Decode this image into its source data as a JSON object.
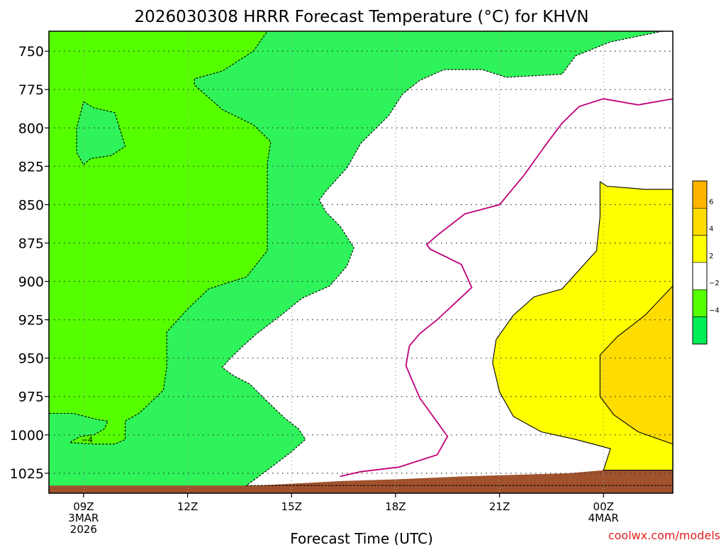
{
  "chart_data": {
    "type": "heatmap",
    "title": "2026030308 HRRR Forecast Temperature (°C) for KHVN",
    "xlabel": "Forecast Time (UTC)",
    "credit": "coolwx.com/models",
    "y_ticks": [
      "750",
      "775",
      "800",
      "825",
      "850",
      "875",
      "900",
      "925",
      "950",
      "975",
      "1000",
      "1025"
    ],
    "x_ticks": [
      {
        "lines": [
          "09Z",
          "3MAR",
          "2026"
        ]
      },
      {
        "lines": [
          "12Z"
        ]
      },
      {
        "lines": [
          "15Z"
        ]
      },
      {
        "lines": [
          "18Z"
        ]
      },
      {
        "lines": [
          "21Z"
        ]
      },
      {
        "lines": [
          "00Z",
          "4MAR"
        ]
      }
    ],
    "contour_labels": [
      {
        "text": "−4",
        "hour": 9.1,
        "pressure": 1005
      }
    ],
    "legend": {
      "labels": [
        "6",
        "4",
        "2",
        "−2",
        "−4"
      ],
      "bins": [
        {
          "from": 6,
          "to": 8,
          "color": "#ffb400"
        },
        {
          "from": 4,
          "to": 6,
          "color": "#ffdc00"
        },
        {
          "from": 2,
          "to": 4,
          "color": "#ffff00"
        },
        {
          "from": -2,
          "to": 2,
          "color": "#ffffff"
        },
        {
          "from": -4,
          "to": -2,
          "color": "#55ff00"
        },
        {
          "from": -6,
          "to": -4,
          "color": "#00ee55"
        }
      ]
    },
    "colors": {
      "below_minus4": "#2ef35a",
      "minus4_to_minus2": "#55ff00",
      "minus2_to_2": "#ffffff",
      "2_to_4": "#ffff00",
      "4_to_6": "#ffdc00",
      "ground": "#a0522d",
      "zero_isotherm": "#c0007a"
    },
    "axes": {
      "x_hours": [
        8,
        26
      ],
      "y_pressure_hPa": [
        1038,
        737
      ],
      "x_grid_hours": [
        9,
        12,
        15,
        18,
        21,
        24
      ]
    },
    "contours": [
      {
        "name": "-4",
        "color": "#55ff00",
        "dashed": true,
        "closed": true,
        "points": [
          [
            8,
            737
          ],
          [
            14.3,
            737
          ],
          [
            14.3,
            737
          ],
          [
            13.9,
            750
          ],
          [
            13.0,
            763
          ],
          [
            12.2,
            768
          ],
          [
            12.2,
            772
          ],
          [
            13.0,
            788
          ],
          [
            13.9,
            798
          ],
          [
            14.4,
            809
          ],
          [
            14.3,
            823
          ],
          [
            14.3,
            850
          ],
          [
            14.3,
            880
          ],
          [
            13.7,
            897
          ],
          [
            12.6,
            905
          ],
          [
            12.0,
            918
          ],
          [
            11.4,
            933
          ],
          [
            11.4,
            956
          ],
          [
            11.3,
            971
          ],
          [
            10.6,
            986
          ],
          [
            10.2,
            991
          ],
          [
            10.2,
            1003
          ],
          [
            9.9,
            1006
          ],
          [
            9.3,
            1006
          ],
          [
            8.6,
            1005
          ],
          [
            8.9,
            1001
          ],
          [
            9.3,
            1000
          ],
          [
            9.6,
            996
          ],
          [
            9.7,
            991
          ],
          [
            9.4,
            990
          ],
          [
            8.7,
            986
          ],
          [
            8,
            986
          ]
        ]
      },
      {
        "name": "-4 island",
        "color": "#55ff00",
        "dashed": true,
        "closed": true,
        "points": [
          [
            9.0,
            783
          ],
          [
            9.3,
            787
          ],
          [
            9.9,
            790
          ],
          [
            10.2,
            812
          ],
          [
            9.8,
            818
          ],
          [
            9.2,
            820
          ],
          [
            9.0,
            824
          ],
          [
            8.8,
            816
          ],
          [
            8.8,
            800
          ]
        ]
      },
      {
        "name": "-2",
        "color": "#ffffff",
        "dashed": true,
        "closed": true,
        "points": [
          [
            26,
            737
          ],
          [
            25.7,
            737
          ],
          [
            24.2,
            744
          ],
          [
            23.2,
            753
          ],
          [
            22.8,
            765
          ],
          [
            21.2,
            767
          ],
          [
            20.5,
            762
          ],
          [
            19.4,
            762
          ],
          [
            18.7,
            769
          ],
          [
            18.2,
            778
          ],
          [
            17.8,
            792
          ],
          [
            17.0,
            810
          ],
          [
            16.6,
            826
          ],
          [
            16.0,
            841
          ],
          [
            15.8,
            847
          ],
          [
            16.0,
            855
          ],
          [
            16.4,
            864
          ],
          [
            16.8,
            878
          ],
          [
            16.6,
            890
          ],
          [
            16.1,
            903
          ],
          [
            15.3,
            911
          ],
          [
            14.7,
            922
          ],
          [
            14.0,
            934
          ],
          [
            13.6,
            942
          ],
          [
            13.2,
            951
          ],
          [
            13.0,
            956
          ],
          [
            13.3,
            961
          ],
          [
            13.8,
            967
          ],
          [
            14.2,
            976
          ],
          [
            14.8,
            989
          ],
          [
            15.2,
            996
          ],
          [
            15.4,
            1003
          ],
          [
            15.0,
            1011
          ],
          [
            14.3,
            1023
          ],
          [
            13.7,
            1033
          ],
          [
            26,
            1033
          ]
        ]
      },
      {
        "name": "0",
        "color": "#c0007a",
        "dashed": false,
        "closed": false,
        "points": [
          [
            16.4,
            1027
          ],
          [
            17.0,
            1024
          ],
          [
            18.1,
            1021
          ],
          [
            19.2,
            1013
          ],
          [
            19.5,
            1001
          ],
          [
            18.7,
            976
          ],
          [
            18.3,
            955
          ],
          [
            18.4,
            942
          ],
          [
            18.7,
            934
          ],
          [
            19.2,
            925
          ],
          [
            20.2,
            904
          ],
          [
            19.9,
            889
          ],
          [
            19.0,
            879
          ],
          [
            18.9,
            876
          ],
          [
            19.2,
            870
          ],
          [
            20.0,
            856
          ],
          [
            21.0,
            850
          ],
          [
            21.7,
            831
          ],
          [
            22.4,
            809
          ],
          [
            22.8,
            797
          ],
          [
            23.3,
            786
          ],
          [
            24.0,
            781
          ],
          [
            25.0,
            785
          ],
          [
            26,
            781
          ]
        ]
      },
      {
        "name": "2",
        "color": "#ffff00",
        "dashed": false,
        "closed": true,
        "points": [
          [
            26,
            840
          ],
          [
            25.2,
            840
          ],
          [
            24.1,
            838
          ],
          [
            23.9,
            835
          ],
          [
            23.9,
            858
          ],
          [
            23.8,
            880
          ],
          [
            23.2,
            895
          ],
          [
            22.8,
            905
          ],
          [
            22.0,
            910
          ],
          [
            21.4,
            922
          ],
          [
            20.9,
            938
          ],
          [
            20.8,
            953
          ],
          [
            21.0,
            972
          ],
          [
            21.4,
            988
          ],
          [
            22.2,
            998
          ],
          [
            23.2,
            1003
          ],
          [
            24.2,
            1009
          ],
          [
            24.0,
            1023
          ],
          [
            26,
            1023
          ]
        ]
      },
      {
        "name": "4",
        "color": "#ffdc00",
        "dashed": false,
        "closed": true,
        "points": [
          [
            26,
            903
          ],
          [
            25.2,
            922
          ],
          [
            24.4,
            936
          ],
          [
            23.9,
            948
          ],
          [
            23.9,
            975
          ],
          [
            24.3,
            987
          ],
          [
            25.0,
            998
          ],
          [
            26,
            1006
          ]
        ]
      }
    ],
    "ground": {
      "color": "#a0522d",
      "points": [
        [
          8,
          1038
        ],
        [
          26,
          1038
        ],
        [
          26,
          1023
        ],
        [
          24.0,
          1023
        ],
        [
          23.0,
          1025
        ],
        [
          20.0,
          1027
        ],
        [
          18.0,
          1029
        ],
        [
          16.5,
          1030
        ],
        [
          14.0,
          1033
        ],
        [
          12.5,
          1033
        ],
        [
          10.0,
          1033
        ],
        [
          8,
          1033
        ]
      ]
    }
  }
}
